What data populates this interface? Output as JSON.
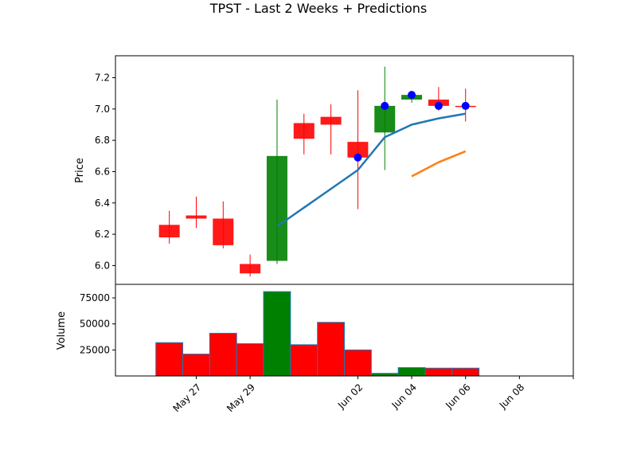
{
  "chart_data": {
    "type": "candlestick",
    "title": "TPST - Last 2 Weeks + Predictions",
    "colors": {
      "up": "#008000",
      "down": "#ff0000",
      "trend": "#1f77b4",
      "prediction": "#ff7f0e",
      "marker": "#0000ff",
      "volume_edge": "#1f77b4"
    },
    "price_panel": {
      "ylabel": "Price",
      "ylim": [
        5.88,
        7.34
      ],
      "yticks": [
        6.0,
        6.2,
        6.4,
        6.6,
        6.8,
        7.0,
        7.2
      ],
      "ytick_labels": [
        "6.0",
        "6.2",
        "6.4",
        "6.6",
        "6.8",
        "7.0",
        "7.2"
      ]
    },
    "volume_panel": {
      "ylabel": "Volume",
      "ylim": [
        0,
        88000
      ],
      "yticks": [
        25000,
        50000,
        75000
      ],
      "ytick_labels": [
        "25000",
        "50000",
        "75000"
      ]
    },
    "xlim": [
      "2025-05-24",
      "2025-06-10"
    ],
    "xticks": [
      "2025-05-27",
      "2025-05-29",
      "2025-06-02",
      "2025-06-04",
      "2025-06-06",
      "2025-06-08",
      "2025-06-10"
    ],
    "xtick_labels": [
      "May 27",
      "May 29",
      "Jun 02",
      "Jun 04",
      "Jun 06",
      "Jun 08",
      ""
    ],
    "candles": [
      {
        "date": "2025-05-26",
        "open": 6.26,
        "high": 6.35,
        "low": 6.14,
        "close": 6.18,
        "direction": "down"
      },
      {
        "date": "2025-05-27",
        "open": 6.32,
        "high": 6.44,
        "low": 6.24,
        "close": 6.3,
        "direction": "down"
      },
      {
        "date": "2025-05-28",
        "open": 6.3,
        "high": 6.41,
        "low": 6.11,
        "close": 6.13,
        "direction": "down"
      },
      {
        "date": "2025-05-29",
        "open": 6.01,
        "high": 6.07,
        "low": 5.93,
        "close": 5.95,
        "direction": "down"
      },
      {
        "date": "2025-05-30",
        "open": 6.03,
        "high": 7.06,
        "low": 6.01,
        "close": 6.7,
        "direction": "up"
      },
      {
        "date": "2025-05-31",
        "open": 6.91,
        "high": 6.97,
        "low": 6.71,
        "close": 6.81,
        "direction": "down"
      },
      {
        "date": "2025-06-01",
        "open": 6.95,
        "high": 7.03,
        "low": 6.71,
        "close": 6.9,
        "direction": "down"
      },
      {
        "date": "2025-06-02",
        "open": 6.79,
        "high": 7.12,
        "low": 6.36,
        "close": 6.69,
        "direction": "down"
      },
      {
        "date": "2025-06-03",
        "open": 6.85,
        "high": 7.27,
        "low": 6.61,
        "close": 7.02,
        "direction": "up"
      },
      {
        "date": "2025-06-04",
        "open": 7.06,
        "high": 7.1,
        "low": 7.04,
        "close": 7.09,
        "direction": "up"
      },
      {
        "date": "2025-06-05",
        "open": 7.06,
        "high": 7.14,
        "low": 6.99,
        "close": 7.02,
        "direction": "down"
      },
      {
        "date": "2025-06-06",
        "open": 7.02,
        "high": 7.13,
        "low": 6.92,
        "close": 7.02,
        "direction": "down"
      }
    ],
    "volume": [
      32000,
      21000,
      41000,
      31000,
      81000,
      30000,
      51500,
      25000,
      2500,
      8000,
      7500,
      7500
    ],
    "trend_line": [
      {
        "date": "2025-05-30",
        "y": 6.25
      },
      {
        "date": "2025-05-31",
        "y": 6.37
      },
      {
        "date": "2025-06-01",
        "y": 6.49
      },
      {
        "date": "2025-06-02",
        "y": 6.61
      },
      {
        "date": "2025-06-03",
        "y": 6.82
      },
      {
        "date": "2025-06-04",
        "y": 6.9
      },
      {
        "date": "2025-06-05",
        "y": 6.94
      },
      {
        "date": "2025-06-06",
        "y": 6.97
      }
    ],
    "prediction_line": [
      {
        "date": "2025-06-04",
        "y": 6.57
      },
      {
        "date": "2025-06-05",
        "y": 6.66
      },
      {
        "date": "2025-06-06",
        "y": 6.73
      }
    ],
    "markers": [
      {
        "date": "2025-06-02",
        "y": 6.69
      },
      {
        "date": "2025-06-03",
        "y": 7.02
      },
      {
        "date": "2025-06-04",
        "y": 7.09
      },
      {
        "date": "2025-06-05",
        "y": 7.02
      },
      {
        "date": "2025-06-06",
        "y": 7.02
      }
    ]
  }
}
